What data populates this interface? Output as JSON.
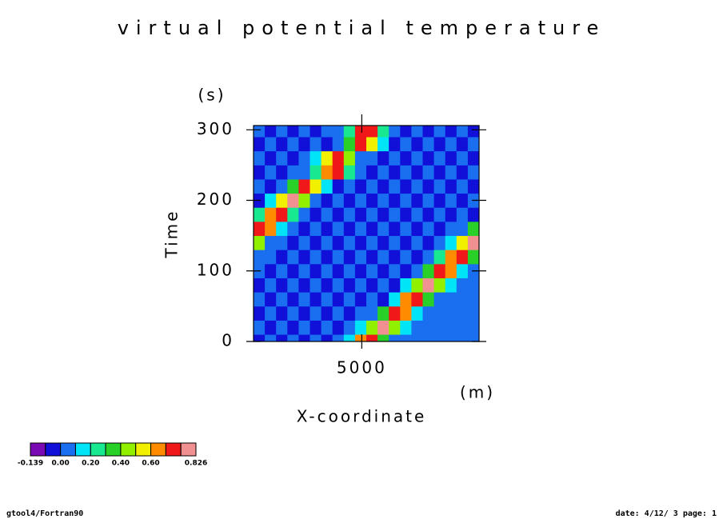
{
  "chart_data": {
    "type": "contour",
    "title": "virtual potential temperature",
    "x_label": "X-coordinate",
    "x_unit": "(m)",
    "y_label": "Time",
    "y_unit": "(s)",
    "xlim": [
      200,
      10200
    ],
    "ylim": [
      0,
      306
    ],
    "xticks": [
      5000
    ],
    "yticks": [
      0,
      100,
      200,
      300
    ],
    "x": [
      450,
      950,
      1450,
      1950,
      2450,
      2950,
      3450,
      3950,
      4450,
      4950,
      5450,
      5950,
      6450,
      6950,
      7450,
      7950,
      8450,
      8950,
      9450,
      9950
    ],
    "y": [
      0,
      20,
      40,
      60,
      80,
      100,
      120,
      140,
      160,
      180,
      200,
      220,
      240,
      260,
      280,
      300
    ],
    "z": [
      [
        -0.05,
        0.03,
        -0.05,
        0.03,
        -0.05,
        0.03,
        -0.05,
        0.03,
        0.18,
        0.62,
        0.76,
        0.33,
        0.05,
        0.03,
        0.03,
        0.03,
        0.03,
        0.03,
        0.03,
        0.03
      ],
      [
        0.03,
        -0.05,
        0.03,
        -0.05,
        0.03,
        -0.05,
        0.03,
        -0.05,
        0.03,
        0.1,
        0.47,
        0.8,
        0.49,
        0.1,
        0.03,
        0.03,
        0.03,
        0.03,
        0.03,
        0.03
      ],
      [
        -0.05,
        0.03,
        -0.05,
        0.03,
        -0.05,
        0.03,
        -0.05,
        0.03,
        -0.05,
        0.03,
        0.05,
        0.32,
        0.76,
        0.64,
        0.19,
        0.03,
        0.03,
        0.03,
        0.03,
        0.03
      ],
      [
        0.03,
        -0.05,
        0.03,
        -0.05,
        0.03,
        -0.05,
        0.03,
        -0.05,
        0.03,
        -0.05,
        0.03,
        -0.05,
        0.19,
        0.64,
        0.76,
        0.32,
        0.05,
        0.03,
        0.03,
        0.03
      ],
      [
        -0.05,
        0.03,
        -0.05,
        0.03,
        -0.05,
        0.03,
        -0.05,
        0.03,
        -0.05,
        0.03,
        -0.05,
        0.03,
        -0.05,
        0.1,
        0.49,
        0.8,
        0.47,
        0.1,
        0.03,
        0.03
      ],
      [
        0.03,
        -0.05,
        0.03,
        -0.05,
        0.03,
        -0.05,
        0.03,
        -0.05,
        0.03,
        -0.05,
        0.03,
        -0.05,
        0.03,
        -0.05,
        0.05,
        0.33,
        0.76,
        0.62,
        0.18,
        0.03
      ],
      [
        0.04,
        0.03,
        -0.05,
        0.03,
        -0.05,
        0.03,
        -0.05,
        0.03,
        -0.05,
        0.03,
        -0.05,
        0.03,
        -0.05,
        0.03,
        -0.05,
        0.03,
        0.21,
        0.66,
        0.74,
        0.3
      ],
      [
        0.45,
        0.09,
        0.03,
        -0.05,
        0.03,
        -0.05,
        0.03,
        -0.05,
        0.03,
        -0.05,
        0.03,
        -0.05,
        0.03,
        -0.05,
        0.03,
        -0.05,
        0.03,
        0.11,
        0.51,
        0.8
      ],
      [
        0.77,
        0.6,
        0.17,
        0.03,
        -0.05,
        0.03,
        -0.05,
        0.03,
        -0.05,
        0.03,
        -0.05,
        0.03,
        -0.05,
        0.03,
        -0.05,
        0.03,
        -0.05,
        0.03,
        0.06,
        0.35
      ],
      [
        0.22,
        0.67,
        0.73,
        0.29,
        0.04,
        -0.05,
        0.03,
        -0.05,
        0.03,
        -0.05,
        0.03,
        -0.05,
        0.03,
        -0.05,
        0.03,
        -0.05,
        0.03,
        -0.05,
        0.03,
        -0.05
      ],
      [
        -0.05,
        0.13,
        0.53,
        0.8,
        0.43,
        0.08,
        -0.05,
        0.03,
        -0.05,
        0.03,
        -0.05,
        0.03,
        -0.05,
        0.03,
        -0.05,
        0.03,
        -0.05,
        0.03,
        -0.05,
        0.03
      ],
      [
        0.03,
        -0.05,
        0.06,
        0.37,
        0.78,
        0.59,
        0.16,
        -0.05,
        0.03,
        -0.05,
        0.03,
        -0.05,
        0.03,
        -0.05,
        0.03,
        -0.05,
        0.03,
        -0.05,
        0.03,
        -0.05
      ],
      [
        -0.05,
        0.03,
        -0.05,
        0.03,
        0.04,
        0.24,
        0.69,
        0.72,
        0.27,
        0.04,
        -0.05,
        0.03,
        -0.05,
        0.03,
        -0.05,
        0.03,
        -0.05,
        0.03,
        -0.05,
        0.03
      ],
      [
        0.03,
        -0.05,
        0.03,
        -0.05,
        0.03,
        0.14,
        0.55,
        0.79,
        0.41,
        0.08,
        0.03,
        -0.05,
        0.03,
        -0.05,
        0.03,
        -0.05,
        0.03,
        -0.05,
        0.03,
        -0.05
      ],
      [
        -0.05,
        0.03,
        -0.05,
        0.03,
        -0.05,
        0.03,
        -0.05,
        0.07,
        0.39,
        0.79,
        0.57,
        0.15,
        -0.05,
        0.03,
        -0.05,
        0.03,
        -0.05,
        0.03,
        -0.05,
        0.03
      ],
      [
        0.03,
        -0.05,
        0.03,
        -0.05,
        0.03,
        -0.05,
        0.03,
        0.04,
        0.25,
        0.7,
        0.7,
        0.25,
        0.04,
        -0.05,
        0.03,
        -0.05,
        0.03,
        -0.05,
        0.03,
        -0.05
      ]
    ],
    "colorbar": {
      "levels": [
        -0.139,
        -0.07,
        0,
        0.1,
        0.2,
        0.3,
        0.4,
        0.5,
        0.6,
        0.7,
        0.8,
        0.826
      ],
      "colors": [
        "#7a0ab4",
        "#1010d8",
        "#1a6ef0",
        "#00e4f8",
        "#18e890",
        "#28d028",
        "#90f000",
        "#f0f000",
        "#ff8c00",
        "#f01818",
        "#f09090"
      ],
      "ticks": [
        -0.139,
        {
          "value": 0,
          "label": "0.00"
        },
        {
          "value": 0.2,
          "label": "0.20"
        },
        {
          "value": 0.4,
          "label": "0.40"
        },
        {
          "value": 0.6,
          "label": "0.60"
        },
        0.826
      ]
    },
    "footer_left": "gtool4/Fortran90",
    "footer_right": "date: 4/12/ 3 page: 1"
  }
}
